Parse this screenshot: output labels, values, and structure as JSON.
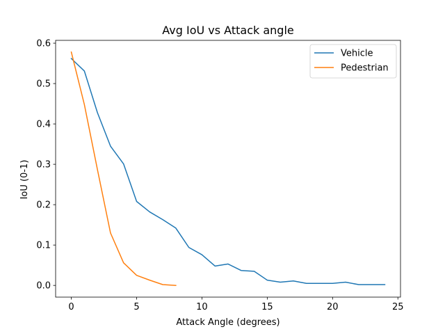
{
  "chart_data": {
    "type": "line",
    "title": "Avg IoU vs Attack angle",
    "xlabel": "Attack Angle (degrees)",
    "ylabel": "IoU (0-1)",
    "xlim": [
      -1.2,
      25.2
    ],
    "ylim": [
      -0.029,
      0.607
    ],
    "xticks": [
      0,
      5,
      10,
      15,
      20,
      25
    ],
    "yticks": [
      0.0,
      0.1,
      0.2,
      0.3,
      0.4,
      0.5,
      0.6
    ],
    "xtick_labels": [
      "0",
      "5",
      "10",
      "15",
      "20",
      "25"
    ],
    "ytick_labels": [
      "0.0",
      "0.1",
      "0.2",
      "0.3",
      "0.4",
      "0.5",
      "0.6"
    ],
    "grid": false,
    "legend_position": "top-right",
    "series": [
      {
        "name": "Vehicle",
        "color": "#1f77b4",
        "x": [
          0,
          1,
          2,
          3,
          4,
          5,
          6,
          7,
          8,
          9,
          10,
          11,
          12,
          13,
          14,
          15,
          16,
          17,
          18,
          19,
          20,
          21,
          22,
          23,
          24
        ],
        "y": [
          0.562,
          0.531,
          0.428,
          0.345,
          0.301,
          0.208,
          0.182,
          0.163,
          0.142,
          0.094,
          0.076,
          0.048,
          0.053,
          0.037,
          0.035,
          0.013,
          0.008,
          0.011,
          0.005,
          0.005,
          0.005,
          0.008,
          0.002,
          0.002,
          0.002
        ]
      },
      {
        "name": "Pedestrian",
        "color": "#ff7f0e",
        "x": [
          0,
          1,
          2,
          3,
          4,
          5,
          6,
          7,
          8
        ],
        "y": [
          0.578,
          0.448,
          0.287,
          0.13,
          0.056,
          0.025,
          0.013,
          0.002,
          0.0
        ]
      }
    ]
  }
}
